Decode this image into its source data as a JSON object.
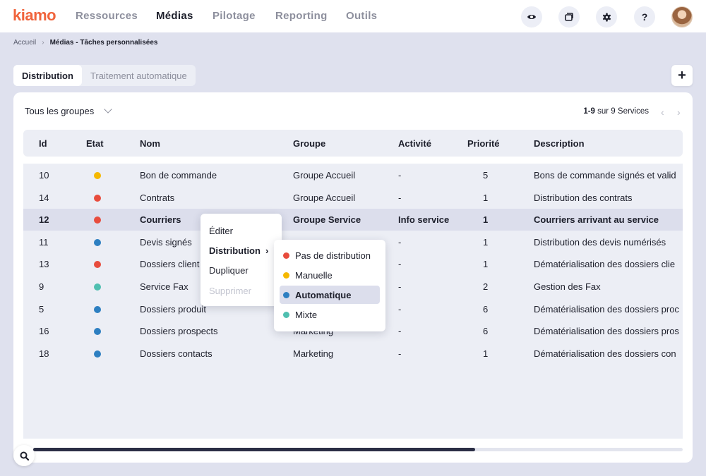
{
  "app": {
    "logo": "kiamo"
  },
  "nav": [
    {
      "label": "Ressources",
      "active": false
    },
    {
      "label": "Médias",
      "active": true
    },
    {
      "label": "Pilotage",
      "active": false
    },
    {
      "label": "Reporting",
      "active": false
    },
    {
      "label": "Outils",
      "active": false
    }
  ],
  "top_icons": [
    "eye-icon",
    "window-icon",
    "gear-icon",
    "help-icon"
  ],
  "help_label": "?",
  "breadcrumb": {
    "home": "Accueil",
    "separator": "›",
    "current": "Médias - Tâches personnalisées"
  },
  "tabs": [
    {
      "label": "Distribution",
      "active": true
    },
    {
      "label": "Traitement automatique",
      "active": false
    }
  ],
  "add_label": "+",
  "filter": {
    "group_select": "Tous les groupes"
  },
  "pager": {
    "range": "1-9",
    "text": "sur 9 Services",
    "prev": "‹",
    "next": "›"
  },
  "table": {
    "headers": {
      "id": "Id",
      "etat": "Etat",
      "nom": "Nom",
      "groupe": "Groupe",
      "activite": "Activité",
      "priorite": "Priorité",
      "description": "Description"
    },
    "rows": [
      {
        "id": "10",
        "etat_color": "#f5b800",
        "nom": "Bon de commande",
        "groupe": "Groupe Accueil",
        "activite": "-",
        "priorite": "5",
        "description": "Bons de commande signés et valid"
      },
      {
        "id": "14",
        "etat_color": "#e84c3d",
        "nom": "Contrats",
        "groupe": "Groupe Accueil",
        "activite": "-",
        "priorite": "1",
        "description": "Distribution des contrats"
      },
      {
        "id": "12",
        "etat_color": "#e84c3d",
        "nom": "Courriers",
        "groupe": "Groupe Service",
        "activite": "Info service",
        "priorite": "1",
        "description": "Courriers arrivant au service",
        "selected": true
      },
      {
        "id": "11",
        "etat_color": "#2d7fc1",
        "nom": "Devis signés",
        "groupe": "",
        "activite": "-",
        "priorite": "1",
        "description": "Distribution des devis numérisés"
      },
      {
        "id": "13",
        "etat_color": "#e84c3d",
        "nom": "Dossiers client",
        "groupe": "",
        "activite": "-",
        "priorite": "1",
        "description": "Dématérialisation des dossiers clie"
      },
      {
        "id": "9",
        "etat_color": "#4fbfb0",
        "nom": "Service Fax",
        "groupe": "",
        "activite": "-",
        "priorite": "2",
        "description": "Gestion des Fax"
      },
      {
        "id": "5",
        "etat_color": "#2d7fc1",
        "nom": "Dossiers produit",
        "groupe": "",
        "activite": "-",
        "priorite": "6",
        "description": "Dématérialisation des dossiers proc"
      },
      {
        "id": "16",
        "etat_color": "#2d7fc1",
        "nom": "Dossiers prospects",
        "groupe": "Marketing",
        "activite": "-",
        "priorite": "6",
        "description": "Dématérialisation des dossiers pros"
      },
      {
        "id": "18",
        "etat_color": "#2d7fc1",
        "nom": "Dossiers contacts",
        "groupe": "Marketing",
        "activite": "-",
        "priorite": "1",
        "description": "Dématérialisation des dossiers con"
      }
    ]
  },
  "context_menu": {
    "items": [
      {
        "label": "Éditer"
      },
      {
        "label": "Distribution",
        "arrow": "›"
      },
      {
        "label": "Dupliquer"
      },
      {
        "label": "Supprimer",
        "disabled": true
      }
    ]
  },
  "submenu": {
    "items": [
      {
        "label": "Pas de distribution",
        "color": "#e84c3d"
      },
      {
        "label": "Manuelle",
        "color": "#f5b800"
      },
      {
        "label": "Automatique",
        "color": "#2d7fc1",
        "active": true
      },
      {
        "label": "Mixte",
        "color": "#4fbfb0"
      }
    ]
  },
  "scrollbar": {
    "position_fraction": 0.68
  },
  "search_fab_icon": "search-icon"
}
